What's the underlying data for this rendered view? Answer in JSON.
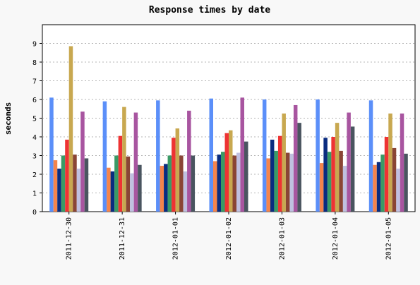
{
  "chart_data": {
    "type": "bar",
    "title": "Response times by date",
    "xlabel": "",
    "ylabel": "seconds",
    "ylim": [
      0,
      10
    ],
    "yticks": [
      0,
      1,
      2,
      3,
      4,
      5,
      6,
      7,
      8,
      9
    ],
    "grid": "horizontal dashed",
    "legend": "none",
    "categories": [
      "2011-12-30",
      "2011-12-31",
      "2012-01-01",
      "2012-01-02",
      "2012-01-03",
      "2012-01-04",
      "2012-01-05"
    ],
    "series": [
      {
        "color": "#5b8ff9",
        "values": [
          6.1,
          5.9,
          5.95,
          6.05,
          6.0,
          6.0,
          5.95
        ]
      },
      {
        "color": "#f5844c",
        "values": [
          2.75,
          2.35,
          2.45,
          2.7,
          2.85,
          2.6,
          2.5
        ]
      },
      {
        "color": "#0a2c80",
        "values": [
          2.3,
          2.15,
          2.55,
          3.05,
          3.85,
          3.95,
          2.65
        ]
      },
      {
        "color": "#3a9a66",
        "values": [
          3.0,
          3.0,
          3.0,
          3.2,
          3.25,
          3.2,
          3.05
        ]
      },
      {
        "color": "#ee3333",
        "values": [
          3.85,
          4.05,
          3.95,
          4.2,
          4.05,
          4.0,
          4.0
        ]
      },
      {
        "color": "#c8a850",
        "values": [
          8.85,
          5.6,
          4.45,
          4.35,
          5.25,
          4.75,
          5.25
        ]
      },
      {
        "color": "#8a4535",
        "values": [
          3.05,
          2.95,
          3.0,
          3.0,
          3.15,
          3.25,
          3.4
        ]
      },
      {
        "color": "#c0c0e0",
        "values": [
          2.3,
          2.05,
          2.15,
          3.15,
          3.1,
          2.45,
          2.3
        ]
      },
      {
        "color": "#a855a0",
        "values": [
          5.35,
          5.3,
          5.4,
          6.1,
          5.7,
          5.3,
          5.25
        ]
      },
      {
        "color": "#4a5560",
        "values": [
          2.85,
          2.5,
          3.0,
          3.75,
          4.75,
          4.55,
          3.1
        ]
      }
    ]
  }
}
